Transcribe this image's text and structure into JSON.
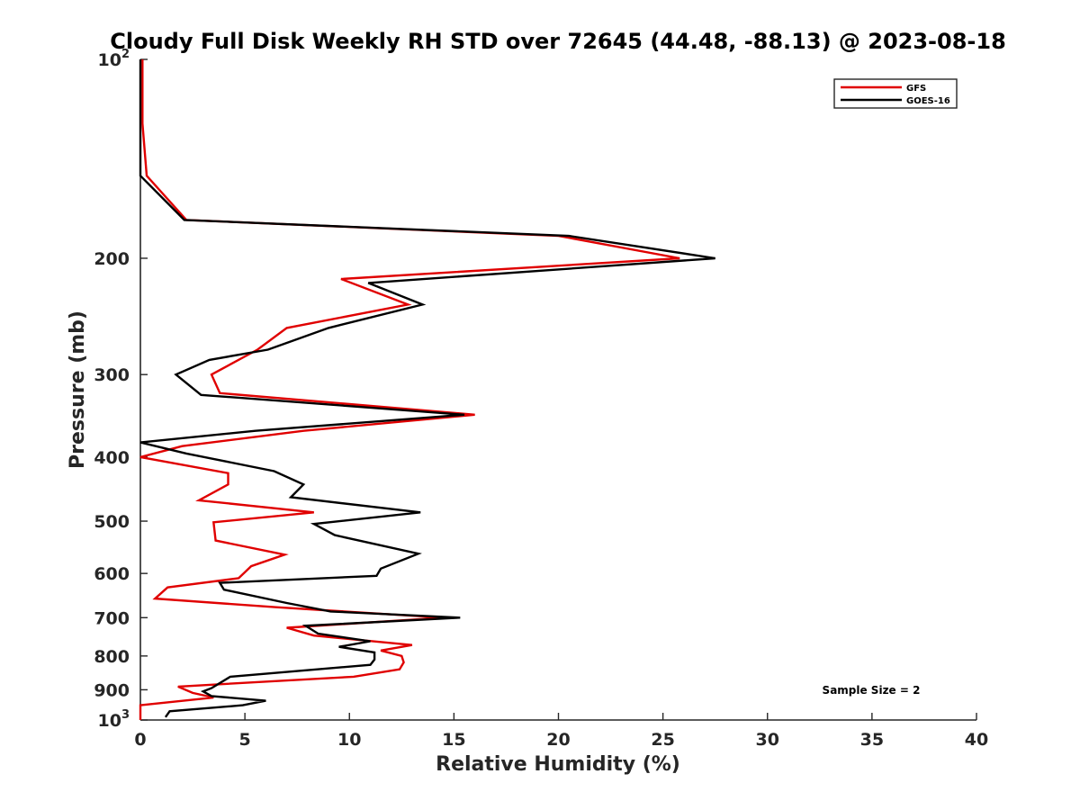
{
  "chart_data": {
    "type": "line",
    "title": "Cloudy Full Disk Weekly RH STD over 72645 (44.48, -88.13) @ 2023-08-18",
    "xlabel": "Relative Humidity (%)",
    "ylabel": "Pressure (mb)",
    "xlim": [
      0,
      40
    ],
    "ylim": [
      100,
      1000
    ],
    "y_scale": "log",
    "y_reversed": true,
    "x_ticks": [
      "0",
      "5",
      "10",
      "15",
      "20",
      "25",
      "30",
      "35",
      "40"
    ],
    "y_ticks": [
      {
        "value": 100,
        "base": "10",
        "exp": "2"
      },
      {
        "value": 200,
        "label": "200"
      },
      {
        "value": 300,
        "label": "300"
      },
      {
        "value": 400,
        "label": "400"
      },
      {
        "value": 500,
        "label": "500"
      },
      {
        "value": 600,
        "label": "600"
      },
      {
        "value": 700,
        "label": "700"
      },
      {
        "value": 800,
        "label": "800"
      },
      {
        "value": 900,
        "label": "900"
      },
      {
        "value": 1000,
        "base": "10",
        "exp": "3"
      }
    ],
    "legend_position": "top-right",
    "grid": false,
    "annotation": "Sample Size = 2",
    "series": [
      {
        "name": "GFS",
        "color": "#e00000",
        "points": [
          [
            0.1,
            100
          ],
          [
            0.1,
            125
          ],
          [
            0.3,
            150
          ],
          [
            2.2,
            175
          ],
          [
            20.0,
            185
          ],
          [
            25.8,
            200
          ],
          [
            9.6,
            215
          ],
          [
            12.8,
            235
          ],
          [
            7.0,
            255
          ],
          [
            5.6,
            275
          ],
          [
            3.4,
            300
          ],
          [
            3.8,
            320
          ],
          [
            16.0,
            345
          ],
          [
            7.8,
            365
          ],
          [
            2.0,
            385
          ],
          [
            0.0,
            400
          ],
          [
            4.2,
            423
          ],
          [
            4.2,
            440
          ],
          [
            2.8,
            465
          ],
          [
            8.3,
            485
          ],
          [
            3.5,
            502
          ],
          [
            3.6,
            535
          ],
          [
            6.9,
            562
          ],
          [
            5.3,
            585
          ],
          [
            4.7,
            610
          ],
          [
            1.3,
            630
          ],
          [
            0.7,
            655
          ],
          [
            6.5,
            675
          ],
          [
            14.5,
            700
          ],
          [
            7.0,
            725
          ],
          [
            8.3,
            745
          ],
          [
            13.0,
            770
          ],
          [
            11.5,
            785
          ],
          [
            12.5,
            800
          ],
          [
            12.6,
            818
          ],
          [
            12.4,
            838
          ],
          [
            10.2,
            860
          ],
          [
            1.8,
            890
          ],
          [
            2.5,
            910
          ],
          [
            3.5,
            925
          ],
          [
            0.0,
            950
          ],
          [
            0.0,
            985
          ],
          [
            0.0,
            1000
          ]
        ]
      },
      {
        "name": "GOES-16",
        "color": "#000000",
        "points": [
          [
            0.0,
            100
          ],
          [
            0.0,
            125
          ],
          [
            0.0,
            150
          ],
          [
            2.1,
            175
          ],
          [
            20.5,
            185
          ],
          [
            27.5,
            200
          ],
          [
            10.9,
            218
          ],
          [
            13.5,
            235
          ],
          [
            9.0,
            255
          ],
          [
            6.1,
            275
          ],
          [
            3.3,
            285
          ],
          [
            1.7,
            300
          ],
          [
            2.9,
            322
          ],
          [
            15.5,
            345
          ],
          [
            5.5,
            365
          ],
          [
            0.0,
            380
          ],
          [
            2.2,
            395
          ],
          [
            6.4,
            420
          ],
          [
            7.8,
            440
          ],
          [
            7.2,
            460
          ],
          [
            13.4,
            485
          ],
          [
            8.3,
            505
          ],
          [
            9.3,
            525
          ],
          [
            13.3,
            560
          ],
          [
            11.5,
            590
          ],
          [
            11.3,
            605
          ],
          [
            3.8,
            620
          ],
          [
            4.0,
            635
          ],
          [
            7.0,
            665
          ],
          [
            9.1,
            685
          ],
          [
            15.3,
            700
          ],
          [
            7.9,
            720
          ],
          [
            8.5,
            740
          ],
          [
            11.0,
            760
          ],
          [
            9.5,
            775
          ],
          [
            11.2,
            790
          ],
          [
            11.2,
            810
          ],
          [
            11.0,
            825
          ],
          [
            4.3,
            860
          ],
          [
            3.4,
            895
          ],
          [
            3.0,
            905
          ],
          [
            3.4,
            920
          ],
          [
            6.0,
            935
          ],
          [
            4.9,
            950
          ],
          [
            1.4,
            970
          ],
          [
            1.2,
            990
          ]
        ]
      }
    ]
  }
}
